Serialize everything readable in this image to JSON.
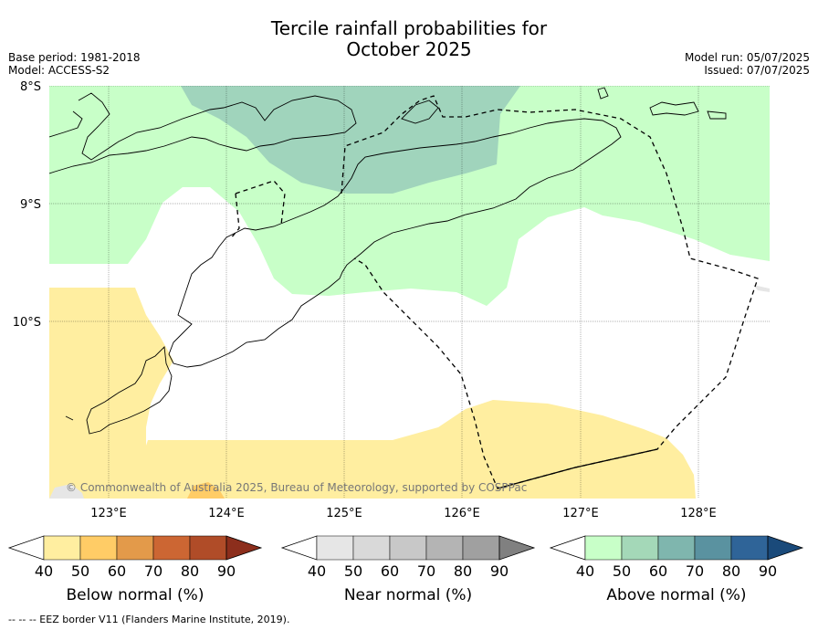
{
  "title_line1": "Tercile rainfall probabilities for",
  "title_line2": "October 2025",
  "meta_left": {
    "base_period": "Base period: 1981-2018",
    "model": "Model: ACCESS-S2"
  },
  "meta_right": {
    "model_run": "Model run: 05/07/2025",
    "issued": "Issued: 07/07/2025"
  },
  "latitudes": [
    "8°S",
    "9°S",
    "10°S"
  ],
  "longitudes": [
    "123°E",
    "124°E",
    "125°E",
    "126°E",
    "127°E",
    "128°E"
  ],
  "copyright": "© Commonwealth of Australia 2025, Bureau of Meteorology, supported by COSPPac",
  "colorbars": [
    {
      "label": "Below normal (%)",
      "ticks": [
        "40",
        "50",
        "60",
        "70",
        "80",
        "90"
      ],
      "colors": [
        "#ffeea0",
        "#ffcc66",
        "#e39a4a",
        "#cc6633",
        "#b04c28",
        "#8c2e1c"
      ]
    },
    {
      "label": "Near normal (%)",
      "ticks": [
        "40",
        "50",
        "60",
        "70",
        "80",
        "90"
      ],
      "colors": [
        "#e6e6e6",
        "#d9d9d9",
        "#c8c8c8",
        "#b4b4b4",
        "#a0a0a0",
        "#808080"
      ]
    },
    {
      "label": "Above normal (%)",
      "ticks": [
        "40",
        "50",
        "60",
        "70",
        "80",
        "90"
      ],
      "colors": [
        "#c8ffc8",
        "#a4d8b8",
        "#7fb6ae",
        "#5a92a0",
        "#2f6498",
        "#1a4a7a"
      ]
    }
  ],
  "footer": "--  --  -- EEZ border V11 (Flanders Marine Institute, 2019)."
}
